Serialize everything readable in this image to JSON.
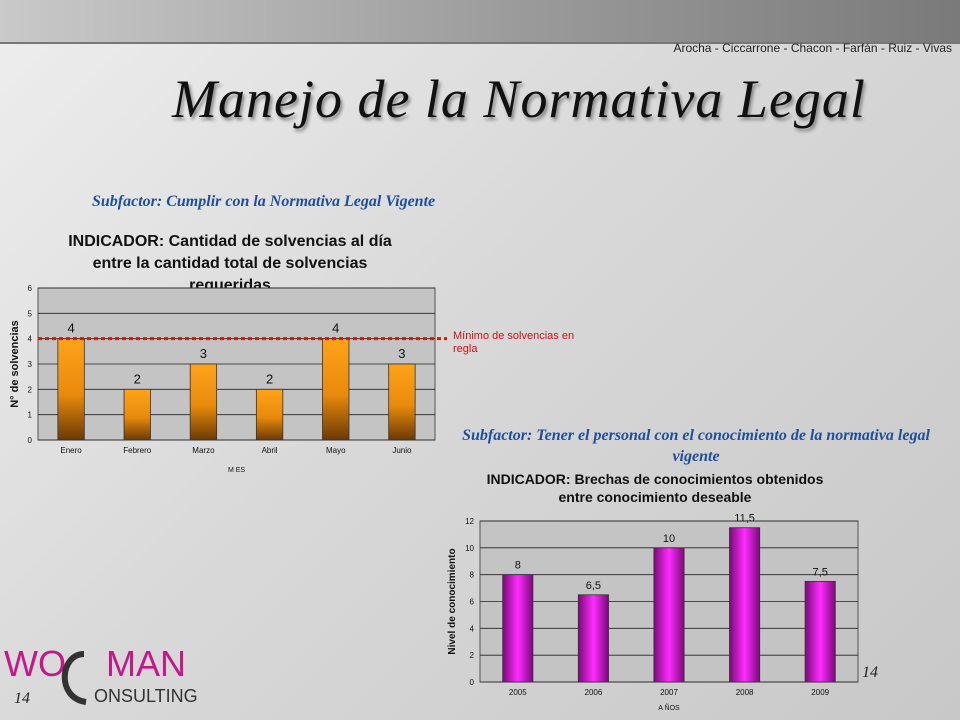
{
  "header": {
    "authors": "Arocha - Ciccarrone - Chacon - Farfán - Ruiz - Vivas",
    "title": "Manejo de la Normativa Legal"
  },
  "subfactors": {
    "first": "Subfactor: Cumplir con la Normativa Legal Vigente",
    "second": "Subfactor: Tener el personal con el conocimiento de la normativa legal vigente"
  },
  "chart_titles": {
    "chart1": "INDICADOR: Cantidad de solvencias al día entre la cantidad total de solvencias requeridas",
    "chart2": "INDICADOR: Brechas de conocimientos obtenidos entre conocimiento deseable"
  },
  "threshold_label": "Mínimo de solvencias en regla",
  "page_numbers": {
    "right": "14",
    "left": "14"
  },
  "logo": {
    "line1": "WO",
    "line2": "MAN",
    "line3": "ONSULTING"
  },
  "colors": {
    "subtitle": "#1f4e9a",
    "threshold": "#cc1111",
    "bar1": "#f59e0b",
    "bar2": "#e010e0"
  },
  "chart_data": [
    {
      "type": "bar",
      "categories": [
        "Enero",
        "Febrero",
        "Marzo",
        "Abril",
        "Mayo",
        "Junio"
      ],
      "values": [
        4,
        2,
        3,
        2,
        4,
        3
      ],
      "xlabel": "M ES",
      "ylabel": "N° de solvencias",
      "ylim": [
        0,
        6
      ],
      "yticks": [
        0,
        1,
        2,
        3,
        4,
        5,
        6
      ],
      "threshold": 4,
      "grid": true
    },
    {
      "type": "bar",
      "categories": [
        "2005",
        "2006",
        "2007",
        "2008",
        "2009"
      ],
      "values": [
        8,
        6.5,
        10,
        11.5,
        7.5
      ],
      "value_labels": [
        "8",
        "6,5",
        "10",
        "11,5",
        "7,5"
      ],
      "xlabel": "A ÑOS",
      "ylabel": "Nivel de conocimiento",
      "ylim": [
        0,
        12
      ],
      "yticks": [
        0,
        2,
        4,
        6,
        8,
        10,
        12
      ],
      "grid": true
    }
  ]
}
